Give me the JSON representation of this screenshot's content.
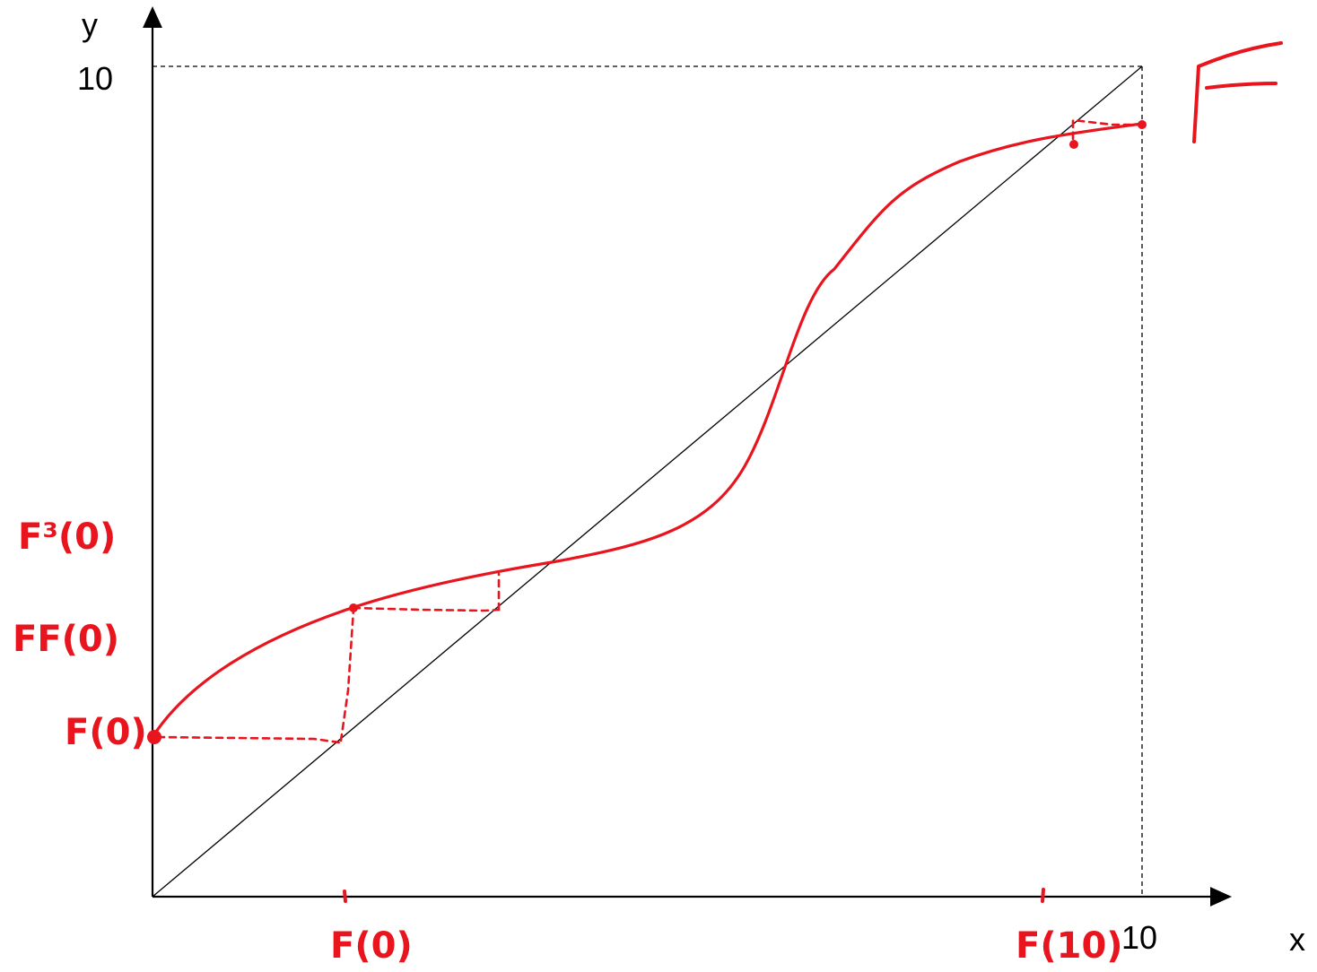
{
  "axes": {
    "x_label": "x",
    "y_label": "y",
    "x_max_label": "10",
    "y_max_label": "10",
    "range": [
      0,
      10
    ]
  },
  "annotations": {
    "function_name": "F",
    "f0": "F(0)",
    "ff0": "FF(0)",
    "f3_0": "F³(0)",
    "x_f0": "F(0)",
    "x_f10": "F(10)"
  },
  "colors": {
    "curve": "#e8141e",
    "axes": "#000000"
  }
}
